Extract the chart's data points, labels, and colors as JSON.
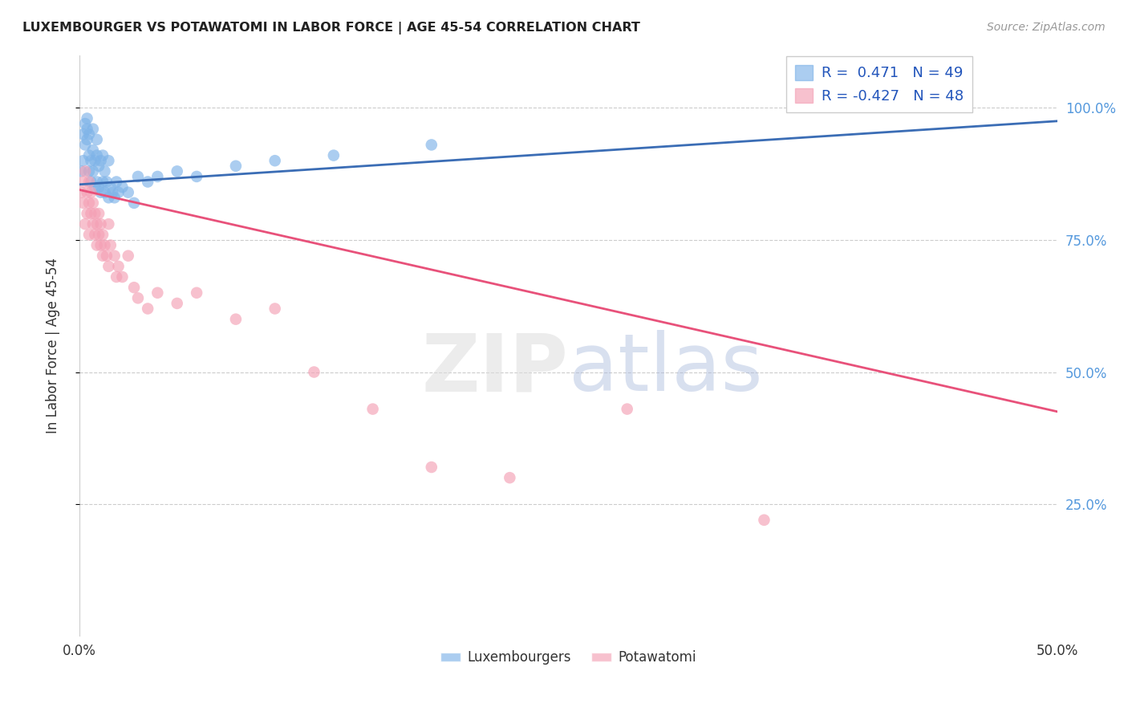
{
  "title": "LUXEMBOURGER VS POTAWATOMI IN LABOR FORCE | AGE 45-54 CORRELATION CHART",
  "source": "Source: ZipAtlas.com",
  "ylabel": "In Labor Force | Age 45-54",
  "xlim": [
    0.0,
    0.5
  ],
  "ylim": [
    0.0,
    1.1
  ],
  "grid_color": "#cccccc",
  "background_color": "#ffffff",
  "lux_color": "#7EB3E8",
  "pot_color": "#F4A0B5",
  "lux_line_color": "#3B6DB5",
  "pot_line_color": "#E8517A",
  "lux_R": 0.471,
  "lux_N": 49,
  "pot_R": -0.427,
  "pot_N": 48,
  "lux_scatter_x": [
    0.001,
    0.002,
    0.002,
    0.003,
    0.003,
    0.004,
    0.004,
    0.004,
    0.005,
    0.005,
    0.005,
    0.006,
    0.006,
    0.007,
    0.007,
    0.007,
    0.008,
    0.008,
    0.009,
    0.009,
    0.009,
    0.01,
    0.01,
    0.011,
    0.011,
    0.012,
    0.012,
    0.013,
    0.013,
    0.014,
    0.015,
    0.015,
    0.016,
    0.017,
    0.018,
    0.019,
    0.02,
    0.022,
    0.025,
    0.028,
    0.03,
    0.035,
    0.04,
    0.05,
    0.06,
    0.08,
    0.1,
    0.13,
    0.18
  ],
  "lux_scatter_y": [
    0.88,
    0.9,
    0.95,
    0.93,
    0.97,
    0.96,
    0.94,
    0.98,
    0.88,
    0.91,
    0.95,
    0.86,
    0.9,
    0.88,
    0.92,
    0.96,
    0.85,
    0.9,
    0.86,
    0.91,
    0.94,
    0.85,
    0.89,
    0.84,
    0.9,
    0.86,
    0.91,
    0.84,
    0.88,
    0.86,
    0.83,
    0.9,
    0.85,
    0.84,
    0.83,
    0.86,
    0.84,
    0.85,
    0.84,
    0.82,
    0.87,
    0.86,
    0.87,
    0.88,
    0.87,
    0.89,
    0.9,
    0.91,
    0.93
  ],
  "pot_scatter_x": [
    0.001,
    0.002,
    0.002,
    0.003,
    0.003,
    0.004,
    0.004,
    0.005,
    0.005,
    0.005,
    0.006,
    0.006,
    0.007,
    0.007,
    0.008,
    0.008,
    0.009,
    0.009,
    0.01,
    0.01,
    0.011,
    0.011,
    0.012,
    0.012,
    0.013,
    0.014,
    0.015,
    0.015,
    0.016,
    0.018,
    0.019,
    0.02,
    0.022,
    0.025,
    0.028,
    0.03,
    0.035,
    0.04,
    0.05,
    0.06,
    0.08,
    0.1,
    0.12,
    0.15,
    0.18,
    0.22,
    0.28,
    0.35
  ],
  "pot_scatter_y": [
    0.84,
    0.86,
    0.82,
    0.88,
    0.78,
    0.84,
    0.8,
    0.86,
    0.82,
    0.76,
    0.8,
    0.84,
    0.78,
    0.82,
    0.76,
    0.8,
    0.78,
    0.74,
    0.76,
    0.8,
    0.74,
    0.78,
    0.72,
    0.76,
    0.74,
    0.72,
    0.78,
    0.7,
    0.74,
    0.72,
    0.68,
    0.7,
    0.68,
    0.72,
    0.66,
    0.64,
    0.62,
    0.65,
    0.63,
    0.65,
    0.6,
    0.62,
    0.5,
    0.43,
    0.32,
    0.3,
    0.43,
    0.22
  ],
  "lux_trendline_x": [
    0.0,
    0.5
  ],
  "lux_trendline_y": [
    0.855,
    0.975
  ],
  "pot_trendline_x": [
    0.0,
    0.5
  ],
  "pot_trendline_y": [
    0.845,
    0.425
  ],
  "watermark_zip": "ZIP",
  "watermark_atlas": "atlas"
}
